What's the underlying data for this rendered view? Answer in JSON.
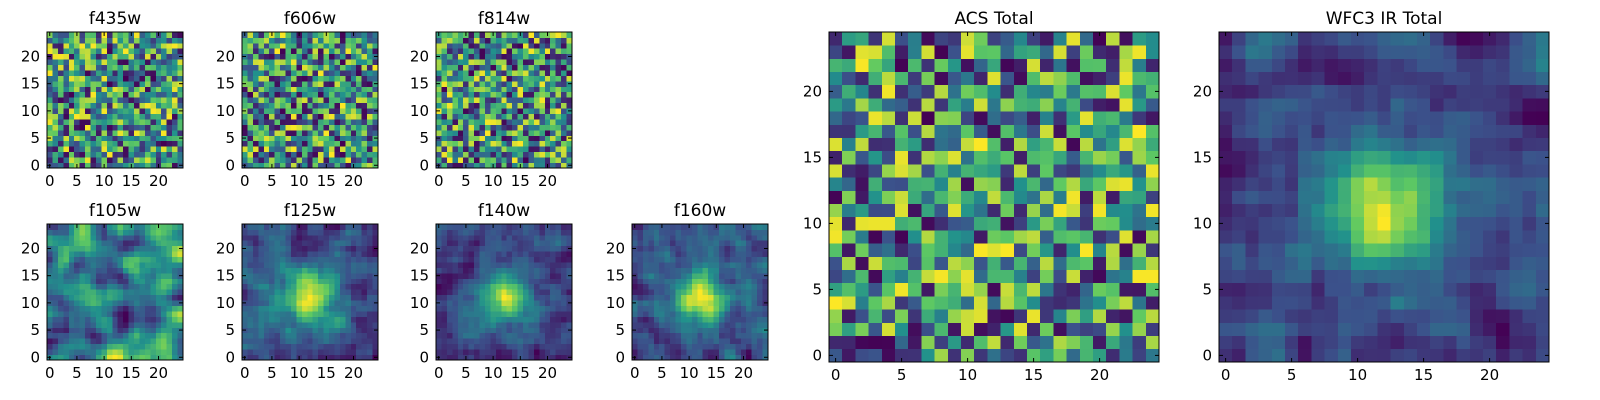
{
  "figure": {
    "description_free": true
  },
  "colormap": {
    "name": "viridis-like",
    "stops": [
      "#440154",
      "#3b528b",
      "#21918c",
      "#5ec962",
      "#fde725"
    ]
  },
  "chart_data": [
    {
      "type": "heatmap",
      "title": "f435w",
      "grid_size": 25,
      "xlim": [
        -0.5,
        24.5
      ],
      "ylim": [
        -0.5,
        24.5
      ],
      "xticks": [
        0,
        5,
        10,
        15,
        20
      ],
      "yticks": [
        0,
        5,
        10,
        15,
        20
      ],
      "pattern": "noise",
      "seed": 11
    },
    {
      "type": "heatmap",
      "title": "f606w",
      "grid_size": 25,
      "xlim": [
        -0.5,
        24.5
      ],
      "ylim": [
        -0.5,
        24.5
      ],
      "xticks": [
        0,
        5,
        10,
        15,
        20
      ],
      "yticks": [
        0,
        5,
        10,
        15,
        20
      ],
      "pattern": "noise",
      "seed": 23
    },
    {
      "type": "heatmap",
      "title": "f814w",
      "grid_size": 25,
      "xlim": [
        -0.5,
        24.5
      ],
      "ylim": [
        -0.5,
        24.5
      ],
      "xticks": [
        0,
        5,
        10,
        15,
        20
      ],
      "yticks": [
        0,
        5,
        10,
        15,
        20
      ],
      "pattern": "noise",
      "seed": 37
    },
    {
      "type": "heatmap",
      "title": "f105w",
      "grid_size": 25,
      "xlim": [
        -0.5,
        24.5
      ],
      "ylim": [
        -0.5,
        24.5
      ],
      "xticks": [
        0,
        5,
        10,
        15,
        20
      ],
      "yticks": [
        0,
        5,
        10,
        15,
        20
      ],
      "pattern": "smooth",
      "seed": 41
    },
    {
      "type": "heatmap",
      "title": "f125w",
      "grid_size": 25,
      "xlim": [
        -0.5,
        24.5
      ],
      "ylim": [
        -0.5,
        24.5
      ],
      "xticks": [
        0,
        5,
        10,
        15,
        20
      ],
      "yticks": [
        0,
        5,
        10,
        15,
        20
      ],
      "pattern": "source",
      "seed": 53
    },
    {
      "type": "heatmap",
      "title": "f140w",
      "grid_size": 25,
      "xlim": [
        -0.5,
        24.5
      ],
      "ylim": [
        -0.5,
        24.5
      ],
      "xticks": [
        0,
        5,
        10,
        15,
        20
      ],
      "yticks": [
        0,
        5,
        10,
        15,
        20
      ],
      "pattern": "source",
      "seed": 67
    },
    {
      "type": "heatmap",
      "title": "f160w",
      "grid_size": 25,
      "xlim": [
        -0.5,
        24.5
      ],
      "ylim": [
        -0.5,
        24.5
      ],
      "xticks": [
        0,
        5,
        10,
        15,
        20
      ],
      "yticks": [
        0,
        5,
        10,
        15,
        20
      ],
      "pattern": "source",
      "seed": 79
    },
    {
      "type": "heatmap",
      "title": "ACS Total",
      "grid_size": 25,
      "xlim": [
        -0.5,
        24.5
      ],
      "ylim": [
        -0.5,
        24.5
      ],
      "xticks": [
        0,
        5,
        10,
        15,
        20
      ],
      "yticks": [
        0,
        5,
        10,
        15,
        20
      ],
      "pattern": "noise",
      "seed": 97
    },
    {
      "type": "heatmap",
      "title": "WFC3 IR Total",
      "grid_size": 25,
      "xlim": [
        -0.5,
        24.5
      ],
      "ylim": [
        -0.5,
        24.5
      ],
      "xticks": [
        0,
        5,
        10,
        15,
        20
      ],
      "yticks": [
        0,
        5,
        10,
        15,
        20
      ],
      "pattern": "source",
      "seed": 113
    }
  ]
}
